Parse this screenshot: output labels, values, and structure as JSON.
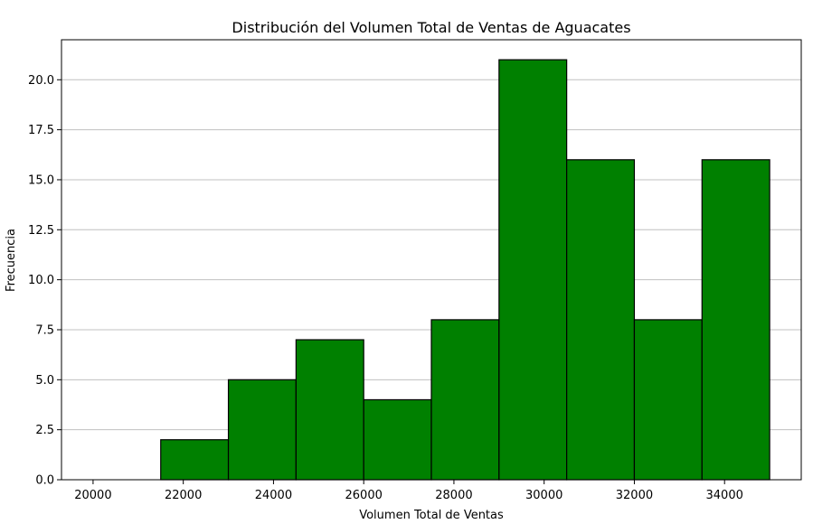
{
  "chart_data": {
    "type": "bar",
    "title": "Distribución del Volumen Total de Ventas de Aguacates",
    "xlabel": "Volumen Total de Ventas",
    "ylabel": "Frecuencia",
    "bin_edges": [
      20000,
      21500,
      23000,
      24500,
      26000,
      27500,
      29000,
      30500,
      32000,
      33500,
      35000
    ],
    "values": [
      0,
      2,
      5,
      7,
      4,
      8,
      21,
      16,
      8,
      16
    ],
    "xlim": [
      19300,
      35700
    ],
    "ylim": [
      0,
      22
    ],
    "x_ticks": [
      20000,
      22000,
      24000,
      26000,
      28000,
      30000,
      32000,
      34000
    ],
    "x_tick_labels": [
      "20000",
      "22000",
      "24000",
      "26000",
      "28000",
      "30000",
      "32000",
      "34000"
    ],
    "y_ticks": [
      0,
      2.5,
      5,
      7.5,
      10,
      12.5,
      15,
      17.5,
      20
    ],
    "y_tick_labels": [
      "0.0",
      "2.5",
      "5.0",
      "7.5",
      "10.0",
      "12.5",
      "15.0",
      "17.5",
      "20.0"
    ],
    "grid": "horizontal",
    "bar_color": "#008000",
    "edge_color": "#000000",
    "grid_color": "#c0c0c0"
  }
}
